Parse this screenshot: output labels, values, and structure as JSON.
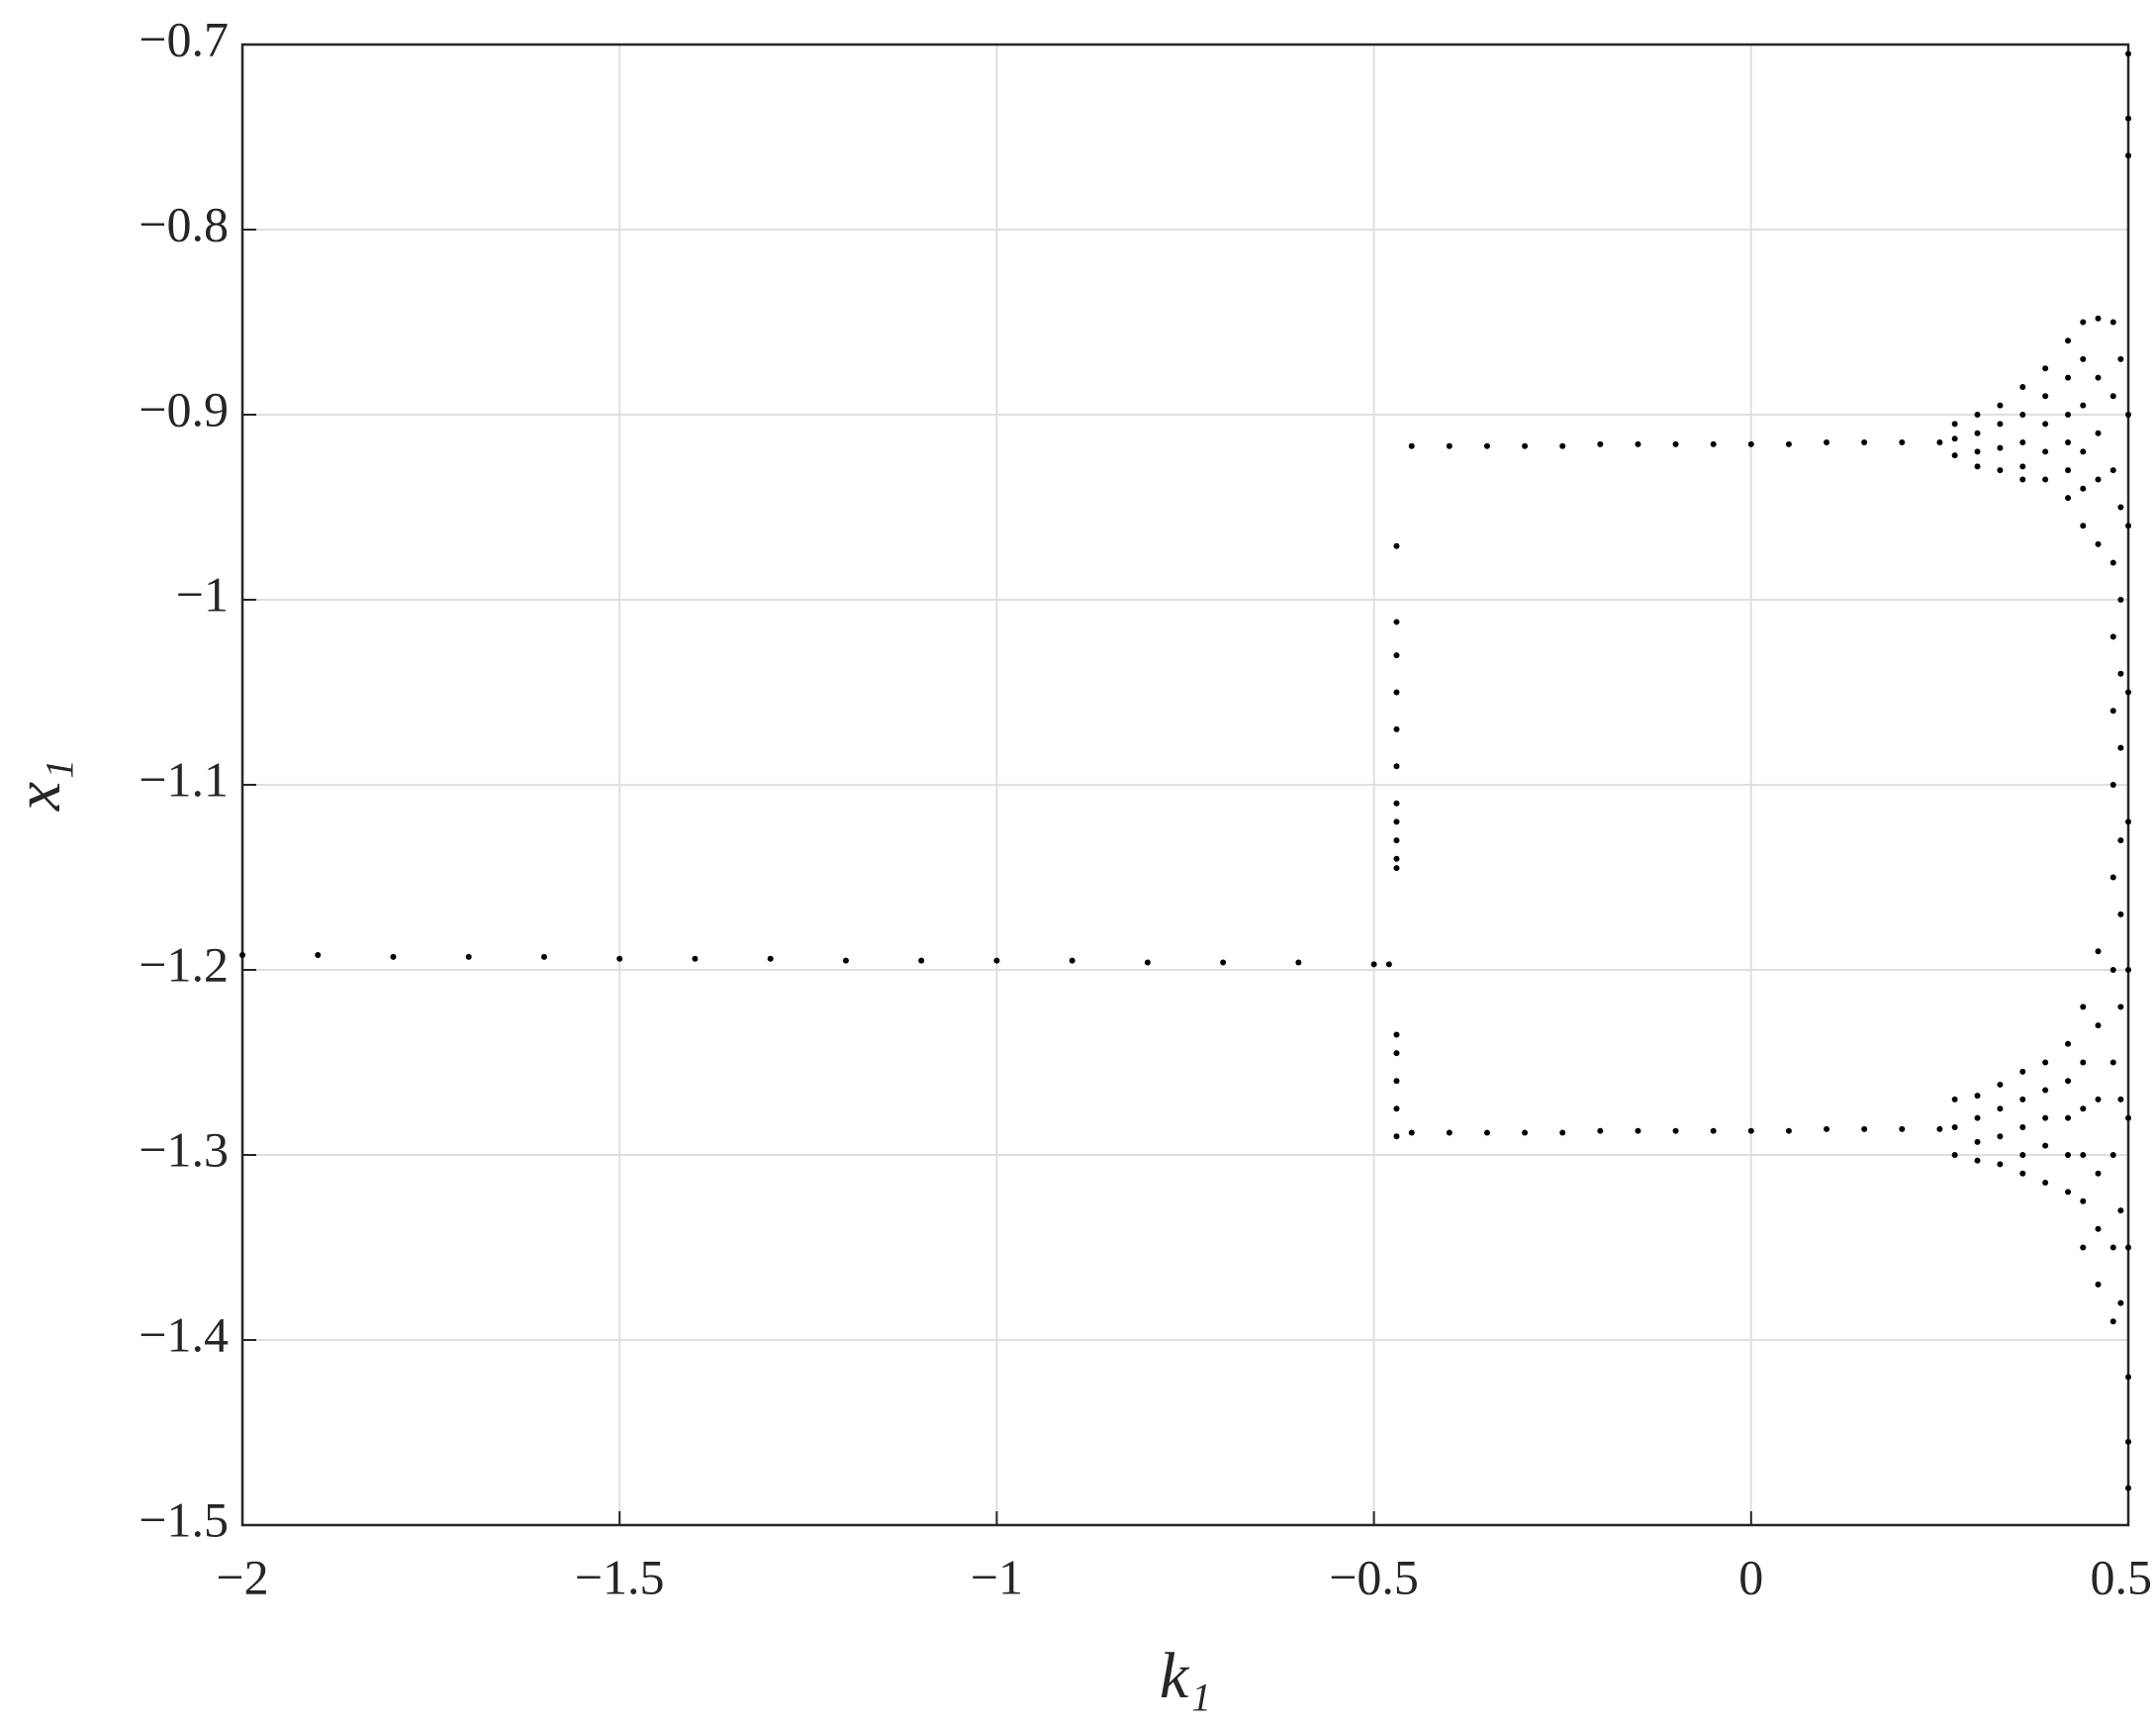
{
  "chart_data": {
    "type": "scatter",
    "xlabel": "k₁",
    "ylabel": "x₁",
    "xlim": [
      -2,
      0.5
    ],
    "ylim": [
      -1.5,
      -0.7
    ],
    "xticks": [
      {
        "value": -2,
        "label": "−2"
      },
      {
        "value": -1.5,
        "label": "−1.5"
      },
      {
        "value": -1,
        "label": "−1"
      },
      {
        "value": -0.5,
        "label": "−0.5"
      },
      0,
      0.5
    ],
    "yticks": [
      {
        "value": -1.5,
        "label": "−1.5"
      },
      {
        "value": -1.4,
        "label": "−1.4"
      },
      {
        "value": -1.3,
        "label": "−1.3"
      },
      {
        "value": -1.2,
        "label": "−1.2"
      },
      {
        "value": -1.1,
        "label": "−1.1"
      },
      {
        "value": -1,
        "label": "−1"
      },
      {
        "value": -0.9,
        "label": "−0.9"
      },
      {
        "value": -0.8,
        "label": "−0.8"
      },
      {
        "value": -0.7,
        "label": "−0.7"
      }
    ],
    "grid": true,
    "series": [
      {
        "color": "#000000",
        "x": [
          -2,
          -1.9,
          -1.8,
          -1.7,
          -1.6,
          -1.5,
          -1.4,
          -1.3,
          -1.2,
          -1.1,
          -1.0,
          -0.9,
          -0.8,
          -0.7,
          -0.6,
          -0.5,
          -0.48
        ],
        "values": [
          -1.192,
          -1.192,
          -1.193,
          -1.193,
          -1.193,
          -1.194,
          -1.194,
          -1.194,
          -1.195,
          -1.195,
          -1.195,
          -1.195,
          -1.196,
          -1.196,
          -1.196,
          -1.197,
          -1.197
        ]
      },
      {
        "color": "#000000",
        "x": [
          -0.47,
          -0.47,
          -0.47,
          -0.47,
          -0.47,
          -0.47,
          -0.47,
          -0.47,
          -0.47,
          -0.47,
          -0.47,
          -0.47,
          -0.47,
          -0.47,
          -0.47,
          -0.47
        ],
        "values": [
          -0.971,
          -1.012,
          -1.03,
          -1.05,
          -1.07,
          -1.09,
          -1.11,
          -1.12,
          -1.13,
          -1.14,
          -1.145,
          -1.235,
          -1.245,
          -1.26,
          -1.275,
          -1.29
        ]
      },
      {
        "color": "#000000",
        "x": [
          -0.45,
          -0.4,
          -0.35,
          -0.3,
          -0.25,
          -0.2,
          -0.15,
          -0.1,
          -0.05,
          0,
          0.05,
          0.1,
          0.15,
          0.2,
          0.25
        ],
        "values": [
          -0.917,
          -0.917,
          -0.917,
          -0.917,
          -0.917,
          -0.916,
          -0.916,
          -0.916,
          -0.916,
          -0.916,
          -0.916,
          -0.915,
          -0.915,
          -0.915,
          -0.915
        ]
      },
      {
        "color": "#000000",
        "x": [
          -0.45,
          -0.4,
          -0.35,
          -0.3,
          -0.25,
          -0.2,
          -0.15,
          -0.1,
          -0.05,
          0,
          0.05,
          0.1,
          0.15,
          0.2,
          0.25
        ],
        "values": [
          -1.288,
          -1.288,
          -1.288,
          -1.288,
          -1.288,
          -1.287,
          -1.287,
          -1.287,
          -1.287,
          -1.287,
          -1.287,
          -1.286,
          -1.286,
          -1.286,
          -1.286
        ]
      },
      {
        "color": "#000000",
        "x": [
          0.27,
          0.27,
          0.27,
          0.27,
          0.27,
          0.27
        ],
        "values": [
          -0.905,
          -0.913,
          -0.922,
          -1.27,
          -1.285,
          -1.3
        ]
      },
      {
        "color": "#000000",
        "x": [
          0.3,
          0.3,
          0.3,
          0.3,
          0.3,
          0.3,
          0.3,
          0.3
        ],
        "values": [
          -0.9,
          -0.91,
          -0.92,
          -0.928,
          -1.268,
          -1.28,
          -1.293,
          -1.303
        ]
      },
      {
        "color": "#000000",
        "x": [
          0.33,
          0.33,
          0.33,
          0.33,
          0.33,
          0.33,
          0.33,
          0.33
        ],
        "values": [
          -0.895,
          -0.905,
          -0.918,
          -0.93,
          -1.262,
          -1.275,
          -1.29,
          -1.305
        ]
      },
      {
        "color": "#000000",
        "x": [
          0.36,
          0.36,
          0.36,
          0.36,
          0.36,
          0.36,
          0.36,
          0.36,
          0.36,
          0.36
        ],
        "values": [
          -0.885,
          -0.9,
          -0.915,
          -0.928,
          -0.935,
          -1.255,
          -1.27,
          -1.285,
          -1.3,
          -1.31
        ]
      },
      {
        "color": "#000000",
        "x": [
          0.39,
          0.39,
          0.39,
          0.39,
          0.39,
          0.39,
          0.39,
          0.39,
          0.39,
          0.39
        ],
        "values": [
          -0.875,
          -0.89,
          -0.905,
          -0.92,
          -0.935,
          -1.25,
          -1.265,
          -1.28,
          -1.295,
          -1.315
        ]
      },
      {
        "color": "#000000",
        "x": [
          0.42,
          0.42,
          0.42,
          0.42,
          0.42,
          0.42,
          0.42,
          0.42,
          0.42,
          0.42,
          0.42
        ],
        "values": [
          -0.86,
          -0.88,
          -0.9,
          -0.915,
          -0.93,
          -0.945,
          -1.24,
          -1.26,
          -1.28,
          -1.3,
          -1.32
        ]
      },
      {
        "color": "#000000",
        "x": [
          0.44,
          0.44,
          0.44,
          0.44,
          0.44,
          0.44,
          0.44,
          0.44,
          0.44,
          0.44,
          0.44,
          0.44
        ],
        "values": [
          -0.85,
          -0.87,
          -0.895,
          -0.92,
          -0.94,
          -0.96,
          -1.22,
          -1.25,
          -1.275,
          -1.3,
          -1.325,
          -1.35
        ]
      },
      {
        "color": "#000000",
        "x": [
          0.46,
          0.46,
          0.46,
          0.46,
          0.46,
          0.46,
          0.46,
          0.46,
          0.46,
          0.46,
          0.46
        ],
        "values": [
          -0.848,
          -0.88,
          -0.91,
          -0.935,
          -0.97,
          -1.19,
          -1.23,
          -1.27,
          -1.31,
          -1.34,
          -1.37
        ]
      },
      {
        "color": "#000000",
        "x": [
          0.48,
          0.48,
          0.48,
          0.48,
          0.48,
          0.48,
          0.48,
          0.48,
          0.48,
          0.48,
          0.48,
          0.48,
          0.48
        ],
        "values": [
          -0.85,
          -0.89,
          -0.93,
          -0.98,
          -1.02,
          -1.06,
          -1.1,
          -1.15,
          -1.2,
          -1.25,
          -1.3,
          -1.35,
          -1.39
        ]
      },
      {
        "color": "#000000",
        "x": [
          0.49,
          0.49,
          0.49,
          0.49,
          0.49,
          0.49,
          0.49,
          0.49,
          0.49,
          0.49,
          0.49
        ],
        "values": [
          -0.87,
          -0.95,
          -1.0,
          -1.04,
          -1.08,
          -1.13,
          -1.17,
          -1.22,
          -1.27,
          -1.33,
          -1.38
        ]
      },
      {
        "color": "#000000",
        "x": [
          0.5,
          0.5,
          0.5,
          0.5,
          0.5,
          0.5,
          0.5,
          0.5,
          0.5,
          0.5,
          0.5,
          0.5,
          0.5
        ],
        "values": [
          -0.705,
          -0.74,
          -0.76,
          -0.9,
          -0.96,
          -1.05,
          -1.12,
          -1.2,
          -1.28,
          -1.35,
          -1.42,
          -1.455,
          -1.48
        ]
      }
    ]
  }
}
